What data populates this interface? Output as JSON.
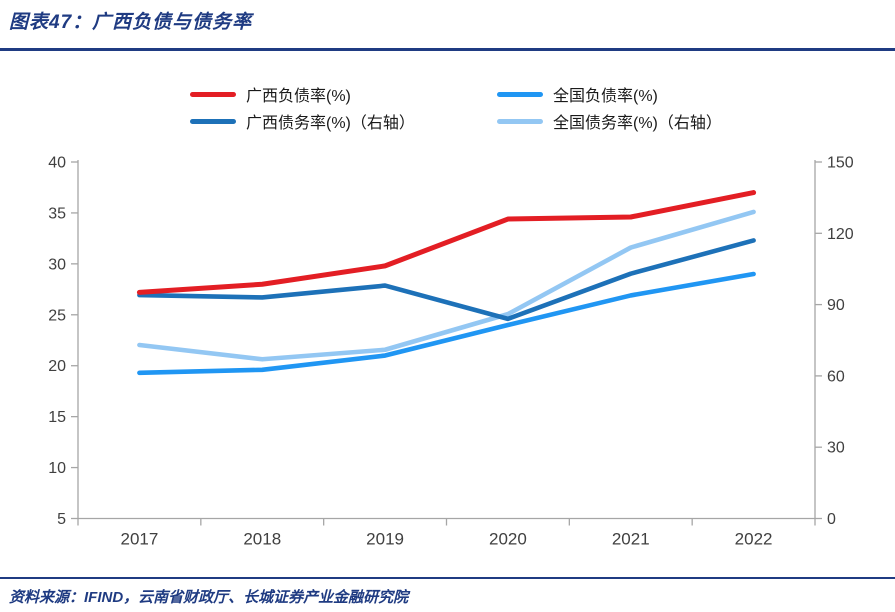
{
  "header": {
    "title": "图表47：广西负债与债务率"
  },
  "footer": {
    "source": "资料来源：IFIND，云南省财政厅、长城证券产业金融研究院"
  },
  "colors": {
    "accent_navy": "#1f3b82",
    "axis": "#a6a6a6",
    "tick_text": "#404040",
    "legend_text": "#1a1a1a",
    "guangxi_liability_red": "#e31e24",
    "national_liability_blue": "#2096f3",
    "guangxi_debt_darkblue": "#1d71b8",
    "national_debt_lightblue": "#93c7f3"
  },
  "chart_data": {
    "type": "line",
    "title": "广西负债与债务率",
    "xlabel": "",
    "ylabel_left": "",
    "ylabel_right": "",
    "grid": false,
    "legend_position": "top",
    "categories": [
      "2017",
      "2018",
      "2019",
      "2020",
      "2021",
      "2022"
    ],
    "left_axis": {
      "min": 5,
      "max": 40,
      "ticks": [
        40,
        35,
        30,
        25,
        20,
        15,
        10,
        5
      ]
    },
    "right_axis": {
      "min": 0,
      "max": 150,
      "ticks": [
        150,
        120,
        90,
        60,
        30,
        0
      ]
    },
    "series": [
      {
        "name": "广西负债率(%)",
        "axis": "left",
        "color": "#e31e24",
        "width": 5,
        "values": [
          27.2,
          28.0,
          29.8,
          34.4,
          34.6,
          37.0
        ]
      },
      {
        "name": "全国负债率(%)",
        "axis": "left",
        "color": "#2096f3",
        "width": 4.6,
        "values": [
          19.3,
          19.6,
          21.0,
          24.0,
          26.9,
          29.0
        ]
      },
      {
        "name": "广西债务率(%)（右轴）",
        "axis": "right",
        "color": "#1d71b8",
        "width": 4.6,
        "values": [
          94,
          93,
          98,
          84,
          103,
          117
        ]
      },
      {
        "name": "全国债务率(%)（右轴）",
        "axis": "right",
        "color": "#93c7f3",
        "width": 4.6,
        "values": [
          73,
          67,
          71,
          86,
          114,
          129
        ]
      }
    ]
  }
}
